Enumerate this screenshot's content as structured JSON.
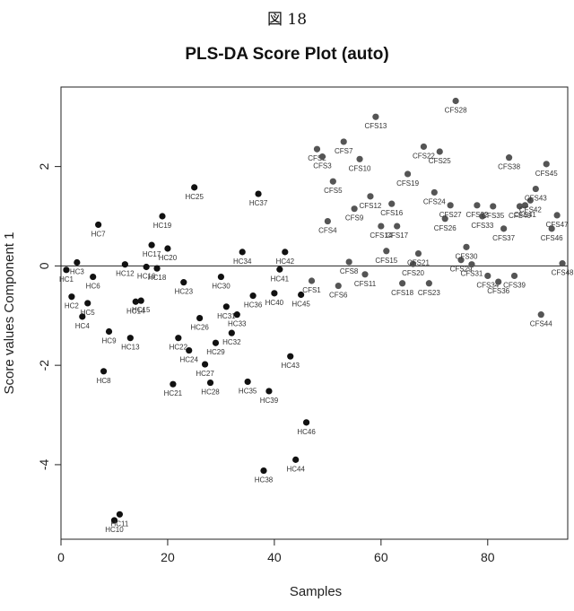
{
  "figure_label": "図 18",
  "chart_data": {
    "type": "scatter",
    "title": "PLS-DA Score Plot (auto)",
    "xlabel": "Samples",
    "ylabel": "Score values Component 1",
    "xlim": [
      0,
      95
    ],
    "ylim": [
      -5.5,
      3.6
    ],
    "x_ticks": [
      0,
      20,
      40,
      60,
      80
    ],
    "y_ticks": [
      -4,
      -2,
      0,
      2
    ],
    "zero_line": true,
    "grid": false,
    "legend": "none",
    "colors": {
      "hc": "#111111",
      "cfs": "#555555"
    },
    "points": [
      {
        "label": "HC1",
        "x": 1,
        "y": -0.08
      },
      {
        "label": "HC2",
        "x": 2,
        "y": -0.62
      },
      {
        "label": "HC3",
        "x": 3,
        "y": 0.07
      },
      {
        "label": "HC4",
        "x": 4,
        "y": -1.02
      },
      {
        "label": "HC5",
        "x": 5,
        "y": -0.75
      },
      {
        "label": "HC6",
        "x": 6,
        "y": -0.22
      },
      {
        "label": "HC7",
        "x": 7,
        "y": 0.83
      },
      {
        "label": "HC8",
        "x": 8,
        "y": -2.12
      },
      {
        "label": "HC9",
        "x": 9,
        "y": -1.32
      },
      {
        "label": "HC10",
        "x": 10,
        "y": -5.12
      },
      {
        "label": "HC11",
        "x": 11,
        "y": -5.0
      },
      {
        "label": "HC12",
        "x": 12,
        "y": 0.03
      },
      {
        "label": "HC13",
        "x": 13,
        "y": -1.45
      },
      {
        "label": "HC14",
        "x": 14,
        "y": -0.72
      },
      {
        "label": "HC15",
        "x": 15,
        "y": -0.7
      },
      {
        "label": "HC16",
        "x": 16,
        "y": -0.02
      },
      {
        "label": "HC17",
        "x": 17,
        "y": 0.42
      },
      {
        "label": "HC18",
        "x": 18,
        "y": -0.05
      },
      {
        "label": "HC19",
        "x": 19,
        "y": 1.0
      },
      {
        "label": "HC20",
        "x": 20,
        "y": 0.35
      },
      {
        "label": "HC21",
        "x": 21,
        "y": -2.38
      },
      {
        "label": "HC22",
        "x": 22,
        "y": -1.45
      },
      {
        "label": "HC23",
        "x": 23,
        "y": -0.33
      },
      {
        "label": "HC24",
        "x": 24,
        "y": -1.7
      },
      {
        "label": "HC25",
        "x": 25,
        "y": 1.58
      },
      {
        "label": "HC26",
        "x": 26,
        "y": -1.05
      },
      {
        "label": "HC27",
        "x": 27,
        "y": -1.98
      },
      {
        "label": "HC28",
        "x": 28,
        "y": -2.35
      },
      {
        "label": "HC29",
        "x": 29,
        "y": -1.55
      },
      {
        "label": "HC30",
        "x": 30,
        "y": -0.22
      },
      {
        "label": "HC31",
        "x": 31,
        "y": -0.82
      },
      {
        "label": "HC32",
        "x": 32,
        "y": -1.35
      },
      {
        "label": "HC33",
        "x": 33,
        "y": -0.98
      },
      {
        "label": "HC34",
        "x": 34,
        "y": 0.28
      },
      {
        "label": "HC35",
        "x": 35,
        "y": -2.33
      },
      {
        "label": "HC36",
        "x": 36,
        "y": -0.6
      },
      {
        "label": "HC37",
        "x": 37,
        "y": 1.45
      },
      {
        "label": "HC38",
        "x": 38,
        "y": -4.12
      },
      {
        "label": "HC39",
        "x": 39,
        "y": -2.52
      },
      {
        "label": "HC40",
        "x": 40,
        "y": -0.55
      },
      {
        "label": "HC41",
        "x": 41,
        "y": -0.07
      },
      {
        "label": "HC42",
        "x": 42,
        "y": 0.28
      },
      {
        "label": "HC43",
        "x": 43,
        "y": -1.82
      },
      {
        "label": "HC44",
        "x": 44,
        "y": -3.9
      },
      {
        "label": "HC45",
        "x": 45,
        "y": -0.58
      },
      {
        "label": "HC46",
        "x": 46,
        "y": -3.15
      },
      {
        "label": "CFS1",
        "x": 47,
        "y": -0.3
      },
      {
        "label": "CFS2",
        "x": 48,
        "y": 2.35
      },
      {
        "label": "CFS3",
        "x": 49,
        "y": 2.2
      },
      {
        "label": "CFS4",
        "x": 50,
        "y": 0.9
      },
      {
        "label": "CFS5",
        "x": 51,
        "y": 1.7
      },
      {
        "label": "CFS6",
        "x": 52,
        "y": -0.4
      },
      {
        "label": "CFS7",
        "x": 53,
        "y": 2.5
      },
      {
        "label": "CFS8",
        "x": 54,
        "y": 0.08
      },
      {
        "label": "CFS9",
        "x": 55,
        "y": 1.15
      },
      {
        "label": "CFS10",
        "x": 56,
        "y": 2.15
      },
      {
        "label": "CFS11",
        "x": 57,
        "y": -0.17
      },
      {
        "label": "CFS12",
        "x": 58,
        "y": 1.4
      },
      {
        "label": "CFS13",
        "x": 59,
        "y": 3.0
      },
      {
        "label": "CFS14",
        "x": 60,
        "y": 0.8
      },
      {
        "label": "CFS15",
        "x": 61,
        "y": 0.3
      },
      {
        "label": "CFS16",
        "x": 62,
        "y": 1.25
      },
      {
        "label": "CFS17",
        "x": 63,
        "y": 0.8
      },
      {
        "label": "CFS18",
        "x": 64,
        "y": -0.35
      },
      {
        "label": "CFS19",
        "x": 65,
        "y": 1.85
      },
      {
        "label": "CFS20",
        "x": 66,
        "y": 0.04
      },
      {
        "label": "CFS21",
        "x": 67,
        "y": 0.25
      },
      {
        "label": "CFS22",
        "x": 68,
        "y": 2.4
      },
      {
        "label": "CFS23",
        "x": 69,
        "y": -0.35
      },
      {
        "label": "CFS24",
        "x": 70,
        "y": 1.48
      },
      {
        "label": "CFS25",
        "x": 71,
        "y": 2.3
      },
      {
        "label": "CFS26",
        "x": 72,
        "y": 0.95
      },
      {
        "label": "CFS27",
        "x": 73,
        "y": 1.22
      },
      {
        "label": "CFS28",
        "x": 74,
        "y": 3.32
      },
      {
        "label": "CFS29",
        "x": 75,
        "y": 0.12
      },
      {
        "label": "CFS30",
        "x": 76,
        "y": 0.38
      },
      {
        "label": "CFS31",
        "x": 77,
        "y": 0.03
      },
      {
        "label": "CFS32",
        "x": 78,
        "y": 1.22
      },
      {
        "label": "CFS33",
        "x": 79,
        "y": 1.0
      },
      {
        "label": "CFS34",
        "x": 80,
        "y": -0.2
      },
      {
        "label": "CFS35",
        "x": 81,
        "y": 1.2
      },
      {
        "label": "CFS36",
        "x": 82,
        "y": -0.32
      },
      {
        "label": "CFS37",
        "x": 83,
        "y": 0.75
      },
      {
        "label": "CFS38",
        "x": 84,
        "y": 2.18
      },
      {
        "label": "CFS39",
        "x": 85,
        "y": -0.2
      },
      {
        "label": "CFS40",
        "x": 86,
        "y": 1.2
      },
      {
        "label": "CFS41",
        "x": 87,
        "y": 1.22
      },
      {
        "label": "CFS42",
        "x": 88,
        "y": 1.32
      },
      {
        "label": "CFS43",
        "x": 89,
        "y": 1.55
      },
      {
        "label": "CFS44",
        "x": 90,
        "y": -0.98
      },
      {
        "label": "CFS45",
        "x": 91,
        "y": 2.05
      },
      {
        "label": "CFS46",
        "x": 92,
        "y": 0.75
      },
      {
        "label": "CFS47",
        "x": 93,
        "y": 1.02
      },
      {
        "label": "CFS48",
        "x": 94,
        "y": 0.05
      }
    ]
  }
}
